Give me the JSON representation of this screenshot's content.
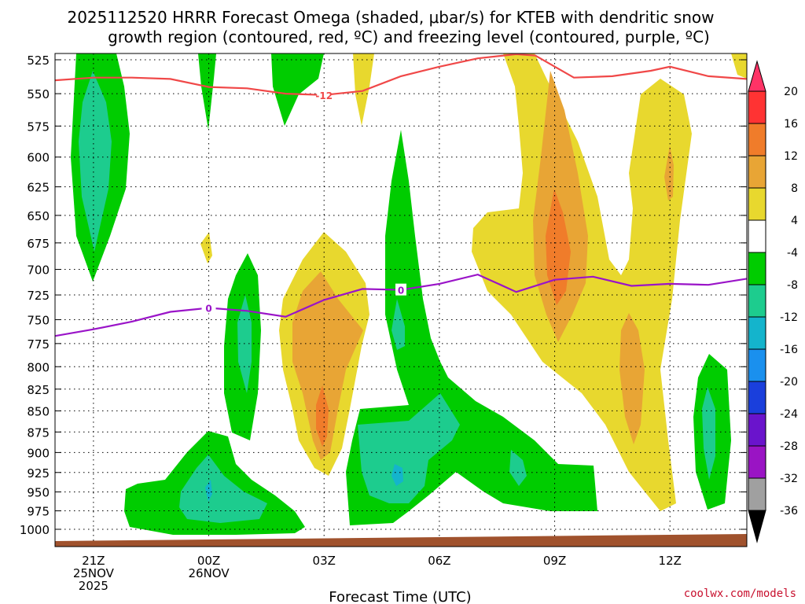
{
  "chart_data": {
    "type": "heatmap",
    "title_line1": "2025112520 HRRR Forecast Omega (shaded, μbar/s) for KTEB with dendritic snow",
    "title_line2": "growth region (contoured, red, ºC) and freezing level (contoured, purple, ºC)",
    "xlabel": "Forecast Time (UTC)",
    "credit": "coolwx.com/models",
    "y_ticks": [
      525,
      550,
      575,
      600,
      625,
      650,
      675,
      700,
      725,
      750,
      775,
      800,
      825,
      850,
      875,
      900,
      925,
      950,
      975,
      1000
    ],
    "x_range_hours": [
      -1.0,
      17.0
    ],
    "x_ticks": [
      {
        "hour": 0,
        "line1": "21Z",
        "line2": "25NOV",
        "line3": "2025"
      },
      {
        "hour": 3,
        "line1": "00Z",
        "line2": "26NOV",
        "line3": ""
      },
      {
        "hour": 6,
        "line1": "03Z",
        "line2": "",
        "line3": ""
      },
      {
        "hour": 9,
        "line1": "06Z",
        "line2": "",
        "line3": ""
      },
      {
        "hour": 12,
        "line1": "09Z",
        "line2": "",
        "line3": ""
      },
      {
        "hour": 15,
        "line1": "12Z",
        "line2": "",
        "line3": ""
      }
    ],
    "colorbar": {
      "labels": [
        "20",
        "16",
        "12",
        "8",
        "4",
        "-4",
        "-8",
        "-12",
        "-16",
        "-20",
        "-24",
        "-28",
        "-32",
        "-36"
      ],
      "colors": [
        "#ff3366",
        "#ff3333",
        "#f07c2a",
        "#e8a535",
        "#e8d82e",
        "#ffffff",
        "#00cc00",
        "#1dcc8e",
        "#14b4cc",
        "#1a90ee",
        "#1a3fdc",
        "#6a14cc",
        "#9a14c4",
        "#a0a0a0",
        "#000000"
      ]
    },
    "levels": {
      "neg4": "#00cc00",
      "neg8": "#1dcc8e",
      "neg12": "#14b4cc",
      "pos4": "#e8d82e",
      "pos8": "#e8a535",
      "pos12": "#f07c2a"
    },
    "dgz_contour": {
      "label": "-12",
      "color": "#f04848",
      "points": [
        [
          -1.0,
          540
        ],
        [
          0.0,
          538
        ],
        [
          1.0,
          538
        ],
        [
          2.0,
          539
        ],
        [
          3.0,
          545
        ],
        [
          4.0,
          546
        ],
        [
          5.0,
          550
        ],
        [
          6.0,
          551
        ],
        [
          7.0,
          548
        ],
        [
          8.0,
          537
        ],
        [
          9.0,
          530
        ],
        [
          10.0,
          524
        ],
        [
          11.0,
          521
        ],
        [
          11.5,
          522
        ],
        [
          12.5,
          538
        ],
        [
          13.5,
          537
        ],
        [
          14.5,
          533
        ],
        [
          15.0,
          530
        ],
        [
          16.0,
          537
        ],
        [
          17.0,
          539
        ]
      ]
    },
    "freezing_contour": {
      "label": "0",
      "color": "#9a14c8",
      "points": [
        [
          -1.0,
          767
        ],
        [
          0.0,
          760
        ],
        [
          1.0,
          752
        ],
        [
          2.0,
          742
        ],
        [
          3.0,
          738
        ],
        [
          4.0,
          741
        ],
        [
          5.0,
          747
        ],
        [
          6.0,
          730
        ],
        [
          7.0,
          719
        ],
        [
          8.0,
          720
        ],
        [
          9.0,
          714
        ],
        [
          10.0,
          705
        ],
        [
          11.0,
          722
        ],
        [
          12.0,
          710
        ],
        [
          13.0,
          707
        ],
        [
          14.0,
          716
        ],
        [
          15.0,
          714
        ],
        [
          16.0,
          715
        ],
        [
          17.0,
          709
        ]
      ]
    }
  }
}
